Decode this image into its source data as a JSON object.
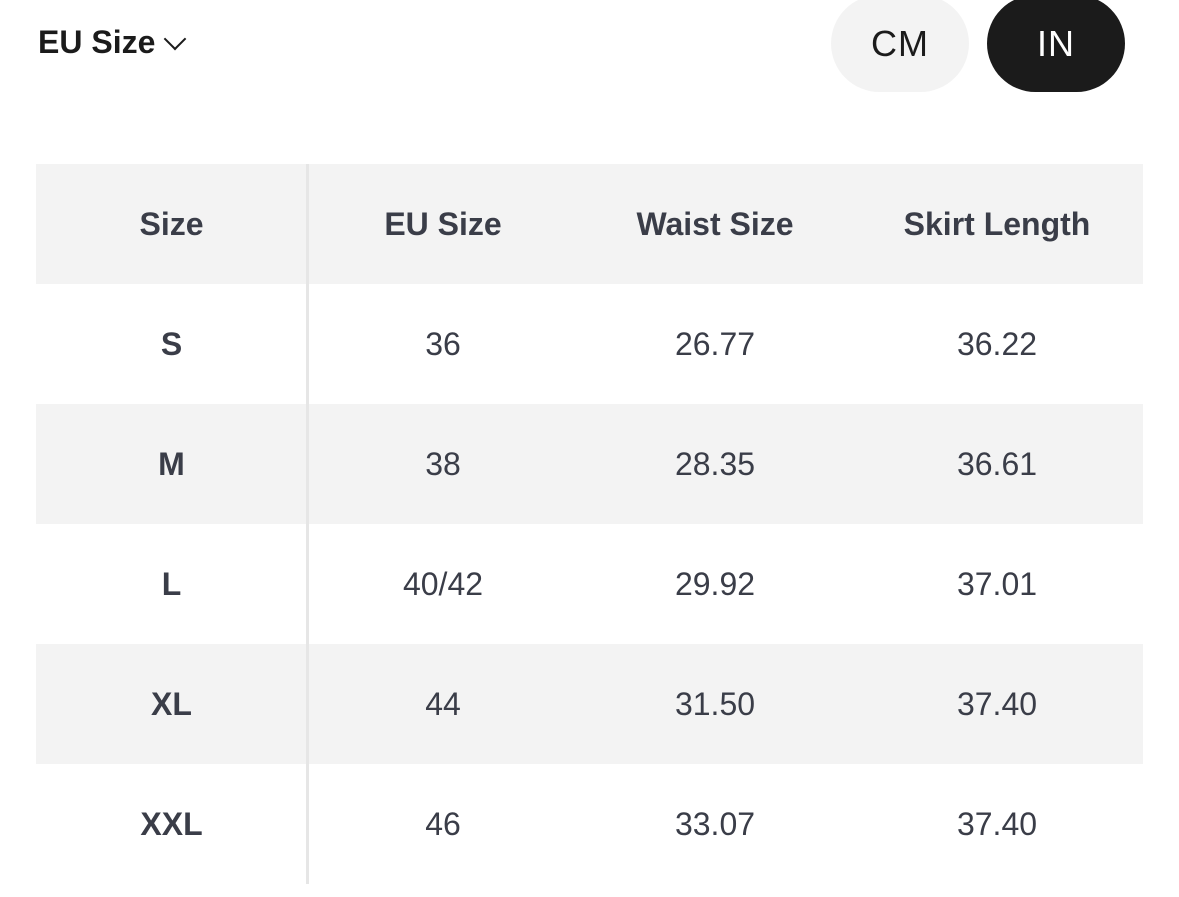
{
  "unit_selector": {
    "label": "EU Size",
    "icon": "chevron-down-icon"
  },
  "units": {
    "options": [
      "CM",
      "IN"
    ],
    "selected": "IN"
  },
  "table": {
    "headers": [
      "Size",
      "EU Size",
      "Waist Size",
      "Skirt Length"
    ],
    "rows": [
      [
        "S",
        "36",
        "26.77",
        "36.22"
      ],
      [
        "M",
        "38",
        "28.35",
        "36.61"
      ],
      [
        "L",
        "40/42",
        "29.92",
        "37.01"
      ],
      [
        "XL",
        "44",
        "31.50",
        "37.40"
      ],
      [
        "XXL",
        "46",
        "33.07",
        "37.40"
      ]
    ]
  }
}
